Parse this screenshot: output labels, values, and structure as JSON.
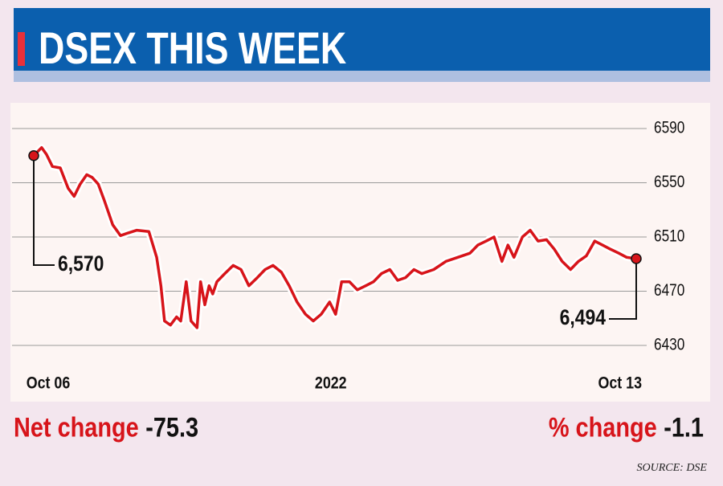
{
  "chart_data": {
    "type": "line",
    "title": "DSEX THIS WEEK",
    "source": "SOURCE: DSE",
    "stats": [
      {
        "label": "Net change",
        "value": -75.3
      },
      {
        "label": "% change",
        "value": -1.1
      }
    ],
    "xlim": [
      0,
      100
    ],
    "xticks": [
      {
        "value": 2.4,
        "label": "Oct 06"
      },
      {
        "value": 49.3,
        "label": "2022"
      },
      {
        "value": 97.3,
        "label": "Oct 13"
      }
    ],
    "ylim": [
      6425,
      6595
    ],
    "yticks": [
      6430,
      6470,
      6510,
      6550,
      6590
    ],
    "grid": true,
    "x": [
      0,
      1.3,
      2.1,
      3.1,
      4.4,
      5.7,
      6.7,
      7.7,
      8.8,
      9.7,
      10.7,
      11.7,
      13.1,
      14.4,
      15.7,
      17.1,
      19.1,
      20.4,
      21.1,
      21.7,
      22.7,
      23.7,
      24.4,
      25.3,
      26.1,
      27.1,
      27.7,
      28.4,
      29.1,
      29.7,
      30.4,
      31.7,
      33.1,
      34.4,
      35.7,
      37.1,
      38.4,
      39.7,
      41.1,
      42.4,
      43.7,
      45.1,
      46.4,
      47.7,
      49.1,
      50.1,
      51.1,
      52.4,
      53.7,
      55.1,
      56.4,
      57.7,
      59.1,
      60.4,
      61.7,
      63.1,
      64.4,
      66.4,
      68.4,
      70.4,
      72.4,
      73.7,
      75.1,
      76.4,
      77.7,
      78.7,
      79.7,
      81.1,
      82.4,
      83.7,
      85.1,
      86.4,
      87.7,
      89.1,
      90.4,
      91.7,
      93.1,
      94.4,
      95.7,
      97.1,
      98.4,
      100
    ],
    "series": [
      {
        "name": "DSEX",
        "color": "#d7141a",
        "values": [
          6570,
          6576,
          6571,
          6562,
          6561,
          6546,
          6540,
          6549,
          6556,
          6554,
          6549,
          6537,
          6519,
          6511,
          6513,
          6515,
          6514,
          6495,
          6474,
          6448,
          6445,
          6451,
          6448,
          6477,
          6448,
          6443,
          6477,
          6460,
          6474,
          6468,
          6477,
          6483,
          6489,
          6486,
          6474,
          6480,
          6486,
          6489,
          6484,
          6474,
          6462,
          6453,
          6448,
          6453,
          6462,
          6453,
          6477,
          6477,
          6471,
          6474,
          6477,
          6483,
          6486,
          6478,
          6480,
          6486,
          6483,
          6486,
          6492,
          6495,
          6498,
          6504,
          6507,
          6510,
          6492,
          6504,
          6495,
          6510,
          6515,
          6507,
          6508,
          6501,
          6492,
          6486,
          6492,
          6496,
          6507,
          6504,
          6501,
          6498,
          6495,
          6494
        ],
        "value_labels": [
          "6,570",
          null,
          null,
          null,
          null,
          null,
          null,
          null,
          null,
          null,
          null,
          null,
          null,
          null,
          null,
          null,
          null,
          null,
          null,
          null,
          null,
          null,
          null,
          null,
          null,
          null,
          null,
          null,
          null,
          null,
          null,
          null,
          null,
          null,
          null,
          null,
          null,
          null,
          null,
          null,
          null,
          null,
          null,
          null,
          null,
          null,
          null,
          null,
          null,
          null,
          null,
          null,
          null,
          null,
          null,
          null,
          null,
          null,
          null,
          null,
          null,
          null,
          null,
          null,
          null,
          null,
          null,
          null,
          null,
          null,
          null,
          null,
          null,
          null,
          null,
          null,
          null,
          null,
          null,
          null,
          null,
          "6,494"
        ]
      }
    ]
  }
}
